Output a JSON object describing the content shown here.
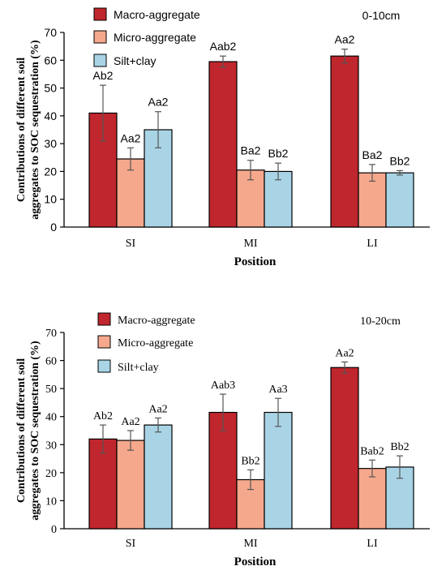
{
  "chart_data": [
    {
      "type": "bar",
      "depth": "0-10cm",
      "categories": [
        "SI",
        "MI",
        "LI"
      ],
      "xlabel": "Position",
      "ylabel_lines": [
        "Contributions of different soil",
        "aggregates to SOC sequestration (%)"
      ],
      "ylim": [
        0,
        70
      ],
      "yticks": [
        0,
        10,
        20,
        30,
        40,
        50,
        60,
        70
      ],
      "font_style": "sans",
      "legend_placement": "top-left",
      "series": [
        {
          "name": "Macro-aggregate",
          "color": "#c0262d",
          "values": [
            41,
            59.5,
            61.5
          ],
          "errors": [
            10,
            2,
            2.5
          ],
          "labels": [
            "Ab2",
            "Aab2",
            "Aa2"
          ]
        },
        {
          "name": "Micro-aggregate",
          "color": "#f5a88c",
          "values": [
            24.5,
            20.5,
            19.5
          ],
          "errors": [
            4,
            3.5,
            3
          ],
          "labels": [
            "Aa2",
            "Ba2",
            "Ba2"
          ]
        },
        {
          "name": "Silt+clay",
          "color": "#a9d4e6",
          "values": [
            35,
            20,
            19.5
          ],
          "errors": [
            6.5,
            3,
            0.8
          ],
          "labels": [
            "Aa2",
            "Bb2",
            "Bb2"
          ]
        }
      ]
    },
    {
      "type": "bar",
      "depth": "10-20cm",
      "categories": [
        "SI",
        "MI",
        "LI"
      ],
      "xlabel": "Position",
      "ylabel_lines": [
        "Contributions of different soil",
        "aggregates to SOC sequestration (%)"
      ],
      "ylim": [
        0,
        70
      ],
      "yticks": [
        0,
        10,
        20,
        30,
        40,
        50,
        60,
        70
      ],
      "font_style": "serif",
      "legend_placement": "top-left",
      "series": [
        {
          "name": "Macro-aggregate",
          "color": "#c0262d",
          "values": [
            32,
            41.5,
            57.5
          ],
          "errors": [
            5,
            6.5,
            2
          ],
          "labels": [
            "Ab2",
            "Aab3",
            "Aa2"
          ]
        },
        {
          "name": "Micro-aggregate",
          "color": "#f5a88c",
          "values": [
            31.5,
            17.5,
            21.5
          ],
          "errors": [
            3.5,
            3.5,
            3
          ],
          "labels": [
            "Aa2",
            "Bb2",
            "Bab2"
          ]
        },
        {
          "name": "Silt+clay",
          "color": "#a9d4e6",
          "values": [
            37,
            41.5,
            22
          ],
          "errors": [
            2.5,
            5,
            4
          ],
          "labels": [
            "Aa2",
            "Aa3",
            "Bb2"
          ]
        }
      ]
    }
  ]
}
